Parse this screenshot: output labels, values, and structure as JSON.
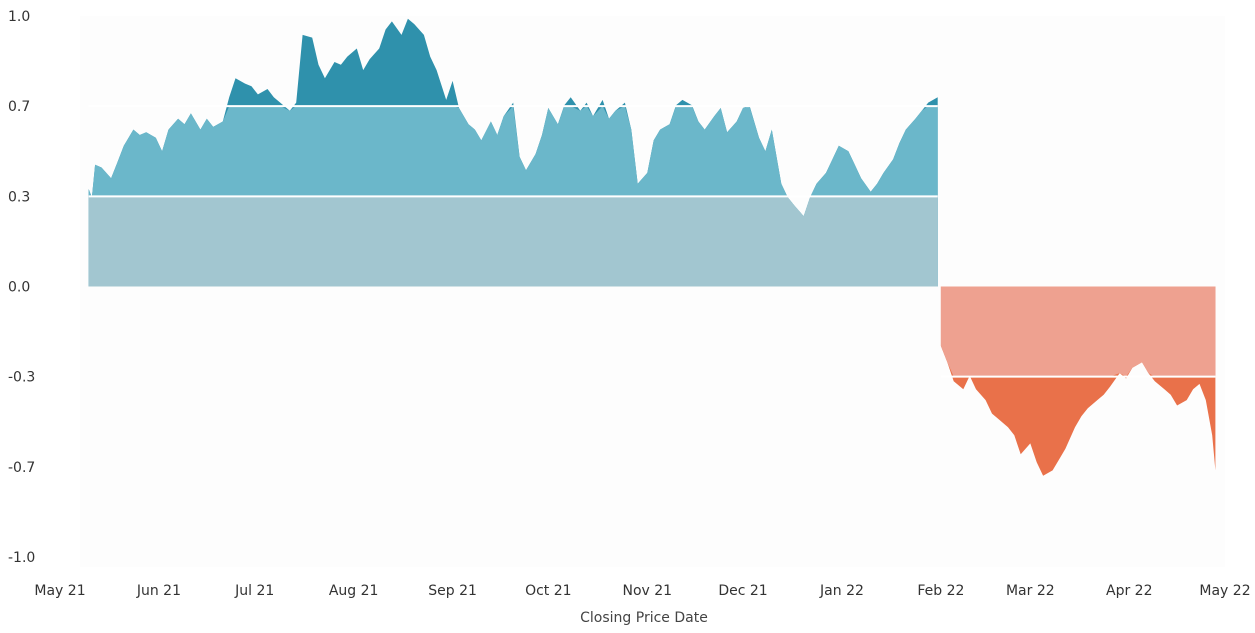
{
  "chart_data": {
    "type": "area",
    "title": "",
    "xlabel": "Closing Price Date",
    "ylabel": "",
    "ylim": [
      -1.0,
      1.0
    ],
    "y_ticks": [
      {
        "value": 1.0,
        "label": "1.0"
      },
      {
        "value": 0.667,
        "label": "0.7"
      },
      {
        "value": 0.333,
        "label": "0.3"
      },
      {
        "value": 0.0,
        "label": "0.0"
      },
      {
        "value": -0.333,
        "label": "-0.3"
      },
      {
        "value": -0.667,
        "label": "-0.7"
      },
      {
        "value": -1.0,
        "label": "-1.0"
      }
    ],
    "x_ticks": [
      {
        "date": "2021-05-01",
        "label": "May 21"
      },
      {
        "date": "2021-06-01",
        "label": "Jun 21"
      },
      {
        "date": "2021-07-01",
        "label": "Jul 21"
      },
      {
        "date": "2021-08-01",
        "label": "Aug 21"
      },
      {
        "date": "2021-09-01",
        "label": "Sep 21"
      },
      {
        "date": "2021-10-01",
        "label": "Oct 21"
      },
      {
        "date": "2021-11-01",
        "label": "Nov 21"
      },
      {
        "date": "2021-12-01",
        "label": "Dec 21"
      },
      {
        "date": "2022-01-01",
        "label": "Jan 22"
      },
      {
        "date": "2022-02-01",
        "label": "Feb 22"
      },
      {
        "date": "2022-03-01",
        "label": "Mar 22"
      },
      {
        "date": "2022-04-01",
        "label": "Apr 22"
      },
      {
        "date": "2022-05-01",
        "label": "May 22"
      }
    ],
    "xlim": [
      "2021-05-01",
      "2022-05-01"
    ],
    "reference_lines": [
      0.333,
      -0.333,
      0.667
    ],
    "colors": {
      "positive_band1": "#a2c6d0",
      "positive_band2": "#6bb7ca",
      "positive_band3": "#2f91ac",
      "negative_band1": "#eea190",
      "negative_band2": "#e9714a",
      "background": "#fdfdfd"
    },
    "series": [
      {
        "x": [
          "2021-05-10",
          "2021-05-11",
          "2021-05-12",
          "2021-05-14",
          "2021-05-17",
          "2021-05-19",
          "2021-05-21",
          "2021-05-24",
          "2021-05-26",
          "2021-05-28",
          "2021-05-31",
          "2021-06-02",
          "2021-06-04",
          "2021-06-07",
          "2021-06-09",
          "2021-06-11",
          "2021-06-14",
          "2021-06-16",
          "2021-06-18",
          "2021-06-21",
          "2021-06-23",
          "2021-06-25",
          "2021-06-28",
          "2021-06-30",
          "2021-07-02",
          "2021-07-05",
          "2021-07-07",
          "2021-07-09",
          "2021-07-12",
          "2021-07-14",
          "2021-07-16",
          "2021-07-19",
          "2021-07-21",
          "2021-07-23",
          "2021-07-26",
          "2021-07-28",
          "2021-07-30",
          "2021-08-02",
          "2021-08-04",
          "2021-08-06",
          "2021-08-09",
          "2021-08-11",
          "2021-08-13",
          "2021-08-16",
          "2021-08-18",
          "2021-08-20",
          "2021-08-23",
          "2021-08-25",
          "2021-08-27",
          "2021-08-30",
          "2021-09-01",
          "2021-09-03",
          "2021-09-06",
          "2021-09-08",
          "2021-09-10",
          "2021-09-13",
          "2021-09-15",
          "2021-09-17",
          "2021-09-20",
          "2021-09-22",
          "2021-09-24",
          "2021-09-27",
          "2021-09-29",
          "2021-10-01",
          "2021-10-04",
          "2021-10-06",
          "2021-10-08",
          "2021-10-11",
          "2021-10-13",
          "2021-10-15",
          "2021-10-18",
          "2021-10-20",
          "2021-10-22",
          "2021-10-25",
          "2021-10-27",
          "2021-10-29",
          "2021-11-01",
          "2021-11-03",
          "2021-11-05",
          "2021-11-08",
          "2021-11-10",
          "2021-11-12",
          "2021-11-15",
          "2021-11-17",
          "2021-11-19",
          "2021-11-22",
          "2021-11-24",
          "2021-11-26",
          "2021-11-29",
          "2021-12-01",
          "2021-12-03",
          "2021-12-06",
          "2021-12-08",
          "2021-12-10",
          "2021-12-13",
          "2021-12-15",
          "2021-12-17",
          "2021-12-20",
          "2021-12-22",
          "2021-12-24",
          "2021-12-27",
          "2021-12-29",
          "2021-12-31",
          "2022-01-03",
          "2022-01-05",
          "2022-01-07",
          "2022-01-10",
          "2022-01-12",
          "2022-01-14",
          "2022-01-17",
          "2022-01-19",
          "2022-01-21",
          "2022-01-24",
          "2022-01-26",
          "2022-01-28",
          "2022-01-31"
        ],
        "values": [
          0.36,
          0.33,
          0.45,
          0.44,
          0.4,
          0.46,
          0.52,
          0.58,
          0.56,
          0.57,
          0.55,
          0.5,
          0.58,
          0.62,
          0.6,
          0.64,
          0.58,
          0.62,
          0.59,
          0.61,
          0.7,
          0.77,
          0.75,
          0.74,
          0.71,
          0.73,
          0.7,
          0.68,
          0.65,
          0.68,
          0.93,
          0.92,
          0.82,
          0.77,
          0.83,
          0.82,
          0.85,
          0.88,
          0.8,
          0.84,
          0.88,
          0.95,
          0.98,
          0.93,
          0.99,
          0.97,
          0.93,
          0.85,
          0.8,
          0.69,
          0.76,
          0.66,
          0.6,
          0.58,
          0.54,
          0.61,
          0.56,
          0.63,
          0.68,
          0.48,
          0.43,
          0.49,
          0.56,
          0.66,
          0.6,
          0.67,
          0.7,
          0.65,
          0.68,
          0.63,
          0.69,
          0.62,
          0.65,
          0.68,
          0.58,
          0.38,
          0.42,
          0.54,
          0.58,
          0.6,
          0.67,
          0.69,
          0.67,
          0.61,
          0.58,
          0.63,
          0.66,
          0.57,
          0.61,
          0.66,
          0.67,
          0.55,
          0.5,
          0.58,
          0.38,
          0.33,
          0.3,
          0.26,
          0.33,
          0.38,
          0.42,
          0.47,
          0.52,
          0.5,
          0.45,
          0.4,
          0.35,
          0.38,
          0.42,
          0.47,
          0.53,
          0.58,
          0.62,
          0.65,
          0.68,
          0.7
        ],
        "name": ""
      },
      {
        "x": [
          "2022-02-01",
          "2022-02-03",
          "2022-02-05",
          "2022-02-08",
          "2022-02-10",
          "2022-02-12",
          "2022-02-15",
          "2022-02-17",
          "2022-02-19",
          "2022-02-22",
          "2022-02-24",
          "2022-02-26",
          "2022-03-01",
          "2022-03-03",
          "2022-03-05",
          "2022-03-08",
          "2022-03-10",
          "2022-03-12",
          "2022-03-15",
          "2022-03-17",
          "2022-03-19",
          "2022-03-22",
          "2022-03-24",
          "2022-03-26",
          "2022-03-29",
          "2022-03-31",
          "2022-04-02",
          "2022-04-05",
          "2022-04-07",
          "2022-04-09",
          "2022-04-12",
          "2022-04-14",
          "2022-04-16",
          "2022-04-19",
          "2022-04-21",
          "2022-04-23",
          "2022-04-25",
          "2022-04-27",
          "2022-04-28"
        ],
        "values": [
          -0.22,
          -0.28,
          -0.35,
          -0.38,
          -0.33,
          -0.38,
          -0.42,
          -0.47,
          -0.49,
          -0.52,
          -0.55,
          -0.62,
          -0.58,
          -0.65,
          -0.7,
          -0.68,
          -0.64,
          -0.6,
          -0.52,
          -0.48,
          -0.45,
          -0.42,
          -0.4,
          -0.37,
          -0.32,
          -0.34,
          -0.3,
          -0.28,
          -0.32,
          -0.35,
          -0.38,
          -0.4,
          -0.44,
          -0.42,
          -0.38,
          -0.36,
          -0.42,
          -0.55,
          -0.68
        ],
        "name": ""
      }
    ]
  }
}
